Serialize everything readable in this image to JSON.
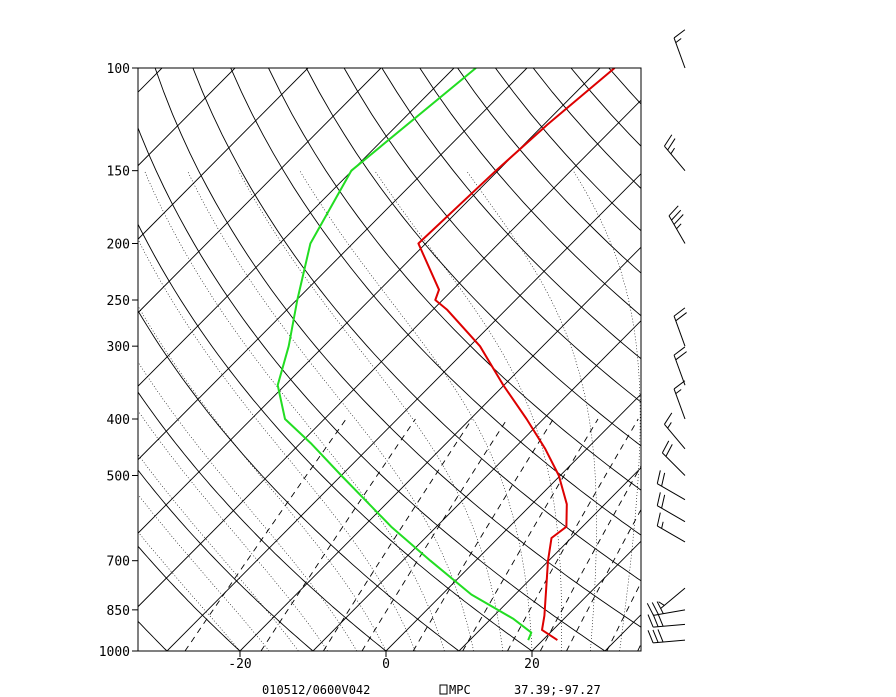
{
  "chart_data": {
    "type": "line",
    "title": "",
    "xlabel": "",
    "ylabel": "",
    "x_axis": {
      "ticks": [
        -20,
        0,
        20
      ],
      "tick_labels": [
        "-20",
        "0",
        "20"
      ],
      "range": [
        -34,
        35
      ]
    },
    "y_axis": {
      "ticks": [
        100,
        150,
        200,
        250,
        300,
        400,
        500,
        700,
        850,
        1000
      ],
      "tick_labels": [
        "100",
        "150",
        "200",
        "250",
        "300",
        "400",
        "500",
        "700",
        "850",
        "1000"
      ],
      "range": [
        100,
        1000
      ],
      "scale": "log"
    },
    "series": [
      {
        "color": "#dd0000",
        "points": [
          {
            "p": 958,
            "t": 22.0
          },
          {
            "p": 920,
            "t": 18.5
          },
          {
            "p": 870,
            "t": 16.9
          },
          {
            "p": 800,
            "t": 14.2
          },
          {
            "p": 700,
            "t": 9.9
          },
          {
            "p": 640,
            "t": 7.3
          },
          {
            "p": 612,
            "t": 7.8
          },
          {
            "p": 560,
            "t": 4.8
          },
          {
            "p": 500,
            "t": -0.2
          },
          {
            "p": 450,
            "t": -5.7
          },
          {
            "p": 400,
            "t": -12.3
          },
          {
            "p": 350,
            "t": -20.1
          },
          {
            "p": 300,
            "t": -28.6
          },
          {
            "p": 260,
            "t": -38.0
          },
          {
            "p": 250,
            "t": -41.0
          },
          {
            "p": 240,
            "t": -41.9
          },
          {
            "p": 200,
            "t": -51.0
          },
          {
            "p": 150,
            "t": -50.3
          },
          {
            "p": 125,
            "t": -49.5
          },
          {
            "p": 100,
            "t": -48.0
          }
        ]
      },
      {
        "color": "#22dd22",
        "points": [
          {
            "p": 958,
            "t": 18.0
          },
          {
            "p": 930,
            "t": 17.4
          },
          {
            "p": 880,
            "t": 13.0
          },
          {
            "p": 800,
            "t": 4.0
          },
          {
            "p": 700,
            "t": -6.2
          },
          {
            "p": 612,
            "t": -16.2
          },
          {
            "p": 500,
            "t": -30.0
          },
          {
            "p": 440,
            "t": -38.6
          },
          {
            "p": 400,
            "t": -45.4
          },
          {
            "p": 350,
            "t": -51.0
          },
          {
            "p": 300,
            "t": -54.8
          },
          {
            "p": 250,
            "t": -59.9
          },
          {
            "p": 200,
            "t": -65.8
          },
          {
            "p": 150,
            "t": -70.1
          },
          {
            "p": 100,
            "t": -67.0
          }
        ]
      }
    ],
    "wind_barbs": [
      {
        "p": 100,
        "dir": 340,
        "spd": 15
      },
      {
        "p": 150,
        "dir": 320,
        "spd": 25
      },
      {
        "p": 200,
        "dir": 330,
        "spd": 35
      },
      {
        "p": 300,
        "dir": 340,
        "spd": 20
      },
      {
        "p": 350,
        "dir": 340,
        "spd": 20
      },
      {
        "p": 400,
        "dir": 340,
        "spd": 15
      },
      {
        "p": 450,
        "dir": 320,
        "spd": 15
      },
      {
        "p": 500,
        "dir": 315,
        "spd": 20
      },
      {
        "p": 550,
        "dir": 300,
        "spd": 20
      },
      {
        "p": 600,
        "dir": 300,
        "spd": 20
      },
      {
        "p": 650,
        "dir": 300,
        "spd": 15
      },
      {
        "p": 780,
        "dir": 230,
        "spd": 5
      },
      {
        "p": 850,
        "dir": 260,
        "spd": 30
      },
      {
        "p": 900,
        "dir": 265,
        "spd": 30
      },
      {
        "p": 958,
        "dir": 265,
        "spd": 30
      }
    ],
    "grid": true
  },
  "footer": {
    "valid_time": "010512/0600V042",
    "source": "MPC",
    "location": "37.39;-97.27"
  }
}
